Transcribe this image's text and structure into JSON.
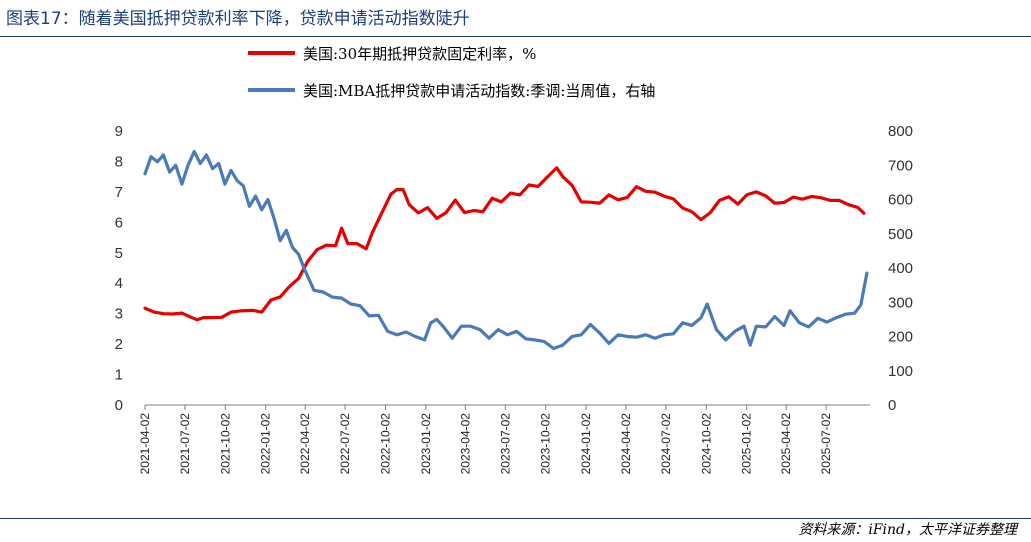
{
  "header": {
    "title": "图表17：随着美国抵押贷款利率下降，贷款申请活动指数陡升"
  },
  "footer": {
    "source": "资料来源：iFind，太平洋证券整理"
  },
  "colors": {
    "series_rate": "#e60000",
    "series_mba": "#4a7ab8",
    "title": "#1f3f7a",
    "rule": "#1f3f7a"
  },
  "chart_data": {
    "type": "line",
    "legend_placement": "top",
    "grid": false,
    "x_ticks": [
      "2021-04-02",
      "2021-07-02",
      "2021-10-02",
      "2022-01-02",
      "2022-04-02",
      "2022-07-02",
      "2022-10-02",
      "2023-01-02",
      "2023-04-02",
      "2023-07-02",
      "2023-10-02",
      "2024-01-02",
      "2024-04-02",
      "2024-07-02",
      "2024-10-02",
      "2025-01-02",
      "2025-04-02",
      "2025-07-02"
    ],
    "x_range": [
      "2021-04-02",
      "2025-10-10"
    ],
    "ylim_left": [
      0,
      9
    ],
    "yticks_left": [
      0,
      1,
      2,
      3,
      4,
      5,
      6,
      7,
      8,
      9
    ],
    "ylim_right": [
      0,
      800
    ],
    "yticks_right": [
      0,
      100,
      200,
      300,
      400,
      500,
      600,
      700,
      800
    ],
    "series": [
      {
        "name": "美国:30年期抵押贷款固定利率，%",
        "axis": "left",
        "color": "#e60000",
        "points": [
          [
            "2021-04-02",
            3.18
          ],
          [
            "2021-04-23",
            3.05
          ],
          [
            "2021-05-14",
            3.0
          ],
          [
            "2021-06-04",
            2.99
          ],
          [
            "2021-06-25",
            3.02
          ],
          [
            "2021-07-16",
            2.88
          ],
          [
            "2021-07-30",
            2.8
          ],
          [
            "2021-08-13",
            2.87
          ],
          [
            "2021-09-03",
            2.87
          ],
          [
            "2021-09-24",
            2.88
          ],
          [
            "2021-10-15",
            3.05
          ],
          [
            "2021-11-05",
            3.09
          ],
          [
            "2021-11-19",
            3.1
          ],
          [
            "2021-12-03",
            3.11
          ],
          [
            "2021-12-24",
            3.05
          ],
          [
            "2022-01-14",
            3.45
          ],
          [
            "2022-02-04",
            3.55
          ],
          [
            "2022-02-25",
            3.89
          ],
          [
            "2022-03-18",
            4.16
          ],
          [
            "2022-04-08",
            4.72
          ],
          [
            "2022-04-29",
            5.1
          ],
          [
            "2022-05-20",
            5.25
          ],
          [
            "2022-06-10",
            5.23
          ],
          [
            "2022-06-24",
            5.81
          ],
          [
            "2022-07-08",
            5.3
          ],
          [
            "2022-07-29",
            5.3
          ],
          [
            "2022-08-19",
            5.13
          ],
          [
            "2022-09-02",
            5.66
          ],
          [
            "2022-09-23",
            6.29
          ],
          [
            "2022-10-14",
            6.92
          ],
          [
            "2022-10-28",
            7.08
          ],
          [
            "2022-11-11",
            7.08
          ],
          [
            "2022-11-25",
            6.58
          ],
          [
            "2022-12-16",
            6.31
          ],
          [
            "2023-01-06",
            6.48
          ],
          [
            "2023-01-27",
            6.13
          ],
          [
            "2023-02-17",
            6.32
          ],
          [
            "2023-03-10",
            6.73
          ],
          [
            "2023-03-31",
            6.32
          ],
          [
            "2023-04-21",
            6.39
          ],
          [
            "2023-05-12",
            6.35
          ],
          [
            "2023-06-02",
            6.79
          ],
          [
            "2023-06-23",
            6.67
          ],
          [
            "2023-07-14",
            6.96
          ],
          [
            "2023-08-04",
            6.9
          ],
          [
            "2023-08-25",
            7.23
          ],
          [
            "2023-09-15",
            7.18
          ],
          [
            "2023-10-06",
            7.49
          ],
          [
            "2023-10-27",
            7.79
          ],
          [
            "2023-11-10",
            7.5
          ],
          [
            "2023-12-01",
            7.22
          ],
          [
            "2023-12-22",
            6.67
          ],
          [
            "2024-01-12",
            6.66
          ],
          [
            "2024-02-02",
            6.63
          ],
          [
            "2024-02-23",
            6.9
          ],
          [
            "2024-03-15",
            6.74
          ],
          [
            "2024-04-05",
            6.82
          ],
          [
            "2024-04-26",
            7.17
          ],
          [
            "2024-05-17",
            7.02
          ],
          [
            "2024-06-07",
            6.99
          ],
          [
            "2024-06-28",
            6.86
          ],
          [
            "2024-07-19",
            6.77
          ],
          [
            "2024-08-09",
            6.47
          ],
          [
            "2024-08-30",
            6.35
          ],
          [
            "2024-09-20",
            6.09
          ],
          [
            "2024-10-11",
            6.32
          ],
          [
            "2024-11-01",
            6.72
          ],
          [
            "2024-11-22",
            6.84
          ],
          [
            "2024-12-13",
            6.6
          ],
          [
            "2025-01-03",
            6.91
          ],
          [
            "2025-01-24",
            7.0
          ],
          [
            "2025-02-14",
            6.87
          ],
          [
            "2025-03-07",
            6.63
          ],
          [
            "2025-03-28",
            6.65
          ],
          [
            "2025-04-18",
            6.83
          ],
          [
            "2025-05-09",
            6.76
          ],
          [
            "2025-05-30",
            6.85
          ],
          [
            "2025-06-20",
            6.81
          ],
          [
            "2025-07-11",
            6.72
          ],
          [
            "2025-08-01",
            6.72
          ],
          [
            "2025-08-22",
            6.58
          ],
          [
            "2025-09-12",
            6.49
          ],
          [
            "2025-09-26",
            6.3
          ]
        ]
      },
      {
        "name": "美国:MBA抵押贷款申请活动指数:季调:当周值，右轴",
        "axis": "right",
        "color": "#4a7ab8",
        "points": [
          [
            "2021-04-02",
            675
          ],
          [
            "2021-04-16",
            725
          ],
          [
            "2021-04-30",
            710
          ],
          [
            "2021-05-14",
            730
          ],
          [
            "2021-05-28",
            680
          ],
          [
            "2021-06-11",
            700
          ],
          [
            "2021-06-25",
            645
          ],
          [
            "2021-07-09",
            700
          ],
          [
            "2021-07-23",
            740
          ],
          [
            "2021-08-06",
            705
          ],
          [
            "2021-08-20",
            730
          ],
          [
            "2021-09-03",
            690
          ],
          [
            "2021-09-17",
            705
          ],
          [
            "2021-10-01",
            645
          ],
          [
            "2021-10-15",
            685
          ],
          [
            "2021-10-29",
            655
          ],
          [
            "2021-11-12",
            640
          ],
          [
            "2021-11-26",
            580
          ],
          [
            "2021-12-10",
            610
          ],
          [
            "2021-12-24",
            570
          ],
          [
            "2022-01-07",
            600
          ],
          [
            "2022-01-21",
            545
          ],
          [
            "2022-02-04",
            480
          ],
          [
            "2022-02-18",
            510
          ],
          [
            "2022-03-04",
            460
          ],
          [
            "2022-03-18",
            440
          ],
          [
            "2022-04-01",
            395
          ],
          [
            "2022-04-22",
            335
          ],
          [
            "2022-05-13",
            330
          ],
          [
            "2022-06-03",
            315
          ],
          [
            "2022-06-24",
            312
          ],
          [
            "2022-07-15",
            295
          ],
          [
            "2022-08-05",
            290
          ],
          [
            "2022-08-26",
            260
          ],
          [
            "2022-09-16",
            262
          ],
          [
            "2022-10-07",
            215
          ],
          [
            "2022-10-28",
            205
          ],
          [
            "2022-11-18",
            213
          ],
          [
            "2022-12-09",
            200
          ],
          [
            "2022-12-30",
            190
          ],
          [
            "2023-01-13",
            240
          ],
          [
            "2023-01-27",
            250
          ],
          [
            "2023-02-10",
            230
          ],
          [
            "2023-03-03",
            195
          ],
          [
            "2023-03-24",
            230
          ],
          [
            "2023-04-14",
            230
          ],
          [
            "2023-05-05",
            220
          ],
          [
            "2023-05-26",
            195
          ],
          [
            "2023-06-16",
            220
          ],
          [
            "2023-07-07",
            205
          ],
          [
            "2023-07-28",
            215
          ],
          [
            "2023-08-18",
            193
          ],
          [
            "2023-09-08",
            190
          ],
          [
            "2023-09-29",
            185
          ],
          [
            "2023-10-20",
            165
          ],
          [
            "2023-11-10",
            175
          ],
          [
            "2023-12-01",
            200
          ],
          [
            "2023-12-22",
            205
          ],
          [
            "2024-01-12",
            235
          ],
          [
            "2024-02-02",
            210
          ],
          [
            "2024-02-23",
            180
          ],
          [
            "2024-03-15",
            205
          ],
          [
            "2024-04-05",
            200
          ],
          [
            "2024-04-26",
            198
          ],
          [
            "2024-05-17",
            205
          ],
          [
            "2024-06-07",
            195
          ],
          [
            "2024-06-28",
            205
          ],
          [
            "2024-07-19",
            208
          ],
          [
            "2024-08-09",
            240
          ],
          [
            "2024-08-30",
            232
          ],
          [
            "2024-09-20",
            255
          ],
          [
            "2024-10-04",
            295
          ],
          [
            "2024-10-25",
            220
          ],
          [
            "2024-11-15",
            190
          ],
          [
            "2024-12-06",
            215
          ],
          [
            "2024-12-27",
            230
          ],
          [
            "2025-01-10",
            175
          ],
          [
            "2025-01-24",
            230
          ],
          [
            "2025-02-14",
            228
          ],
          [
            "2025-03-07",
            258
          ],
          [
            "2025-03-28",
            232
          ],
          [
            "2025-04-11",
            275
          ],
          [
            "2025-05-02",
            240
          ],
          [
            "2025-05-23",
            228
          ],
          [
            "2025-06-13",
            253
          ],
          [
            "2025-07-04",
            242
          ],
          [
            "2025-07-25",
            255
          ],
          [
            "2025-08-15",
            265
          ],
          [
            "2025-09-05",
            268
          ],
          [
            "2025-09-19",
            292
          ],
          [
            "2025-10-03",
            385
          ]
        ]
      }
    ]
  }
}
